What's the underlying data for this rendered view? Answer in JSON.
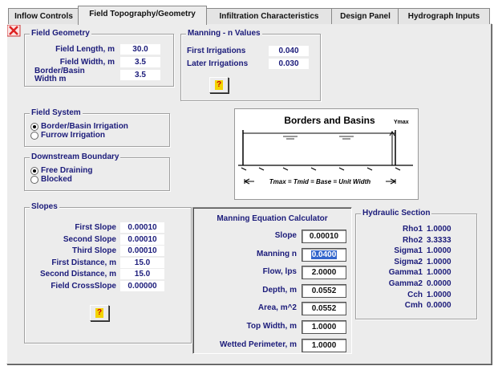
{
  "tabs": [
    "Inflow Controls",
    "Field Topography/Geometry",
    "Infiltration Characteristics",
    "Design Panel",
    "Hydrograph Inputs"
  ],
  "field_geometry": {
    "title": "Field Geometry",
    "rows": [
      {
        "label": "Field Length, m",
        "value": "30.0"
      },
      {
        "label": "Field Width, m",
        "value": "3.5"
      },
      {
        "label": "Border/Basin Width m",
        "value": "3.5"
      }
    ]
  },
  "manning_n": {
    "title": "Manning - n Values",
    "rows": [
      {
        "label": "First Irrigations",
        "value": "0.040"
      },
      {
        "label": "Later Irrigations",
        "value": "0.030"
      }
    ],
    "help_button": "?"
  },
  "field_system": {
    "title": "Field System",
    "options": [
      {
        "label": "Border/Basin Irrigation",
        "checked": true
      },
      {
        "label": "Furrow Irrigation",
        "checked": false
      }
    ]
  },
  "downstream_boundary": {
    "title": "Downstream Boundary",
    "options": [
      {
        "label": "Free Draining",
        "checked": true
      },
      {
        "label": "Blocked",
        "checked": false
      }
    ]
  },
  "diagram": {
    "title": "Borders and Basins",
    "top_label": "Ymax",
    "bottom_label": "Tmax = Tmid = Base = Unit Width"
  },
  "slopes": {
    "title": "Slopes",
    "rows": [
      {
        "label": "First Slope",
        "value": "0.00010"
      },
      {
        "label": "Second Slope",
        "value": "0.00010"
      },
      {
        "label": "Third Slope",
        "value": "0.00010"
      },
      {
        "label": "First Distance, m",
        "value": "15.0"
      },
      {
        "label": "Second Distance, m",
        "value": "15.0"
      },
      {
        "label": "Field CrossSlope",
        "value": "0.00000"
      }
    ],
    "help_button": "?"
  },
  "calculator": {
    "title": "Manning Equation Calculator",
    "rows": [
      {
        "label": "Slope",
        "value": "0.00010"
      },
      {
        "label": "Manning n",
        "value": "0.0400",
        "selected": true
      },
      {
        "label": "Flow, lps",
        "value": "2.0000"
      },
      {
        "label": "Depth, m",
        "value": "0.0552"
      },
      {
        "label": "Area, m^2",
        "value": "0.0552"
      },
      {
        "label": "Top Width, m",
        "value": "1.0000"
      },
      {
        "label": "Wetted Perimeter, m",
        "value": "1.0000"
      }
    ]
  },
  "hydraulic_section": {
    "title": "Hydraulic Section",
    "rows": [
      {
        "label": "Rho1",
        "value": "1.0000"
      },
      {
        "label": "Rho2",
        "value": "3.3333"
      },
      {
        "label": "Sigma1",
        "value": "1.0000"
      },
      {
        "label": "Sigma2",
        "value": "1.0000"
      },
      {
        "label": "Gamma1",
        "value": "1.0000"
      },
      {
        "label": "Gamma2",
        "value": "0.0000"
      },
      {
        "label": "Cch",
        "value": "1.0000"
      },
      {
        "label": "Cmh",
        "value": "0.0000"
      }
    ]
  }
}
